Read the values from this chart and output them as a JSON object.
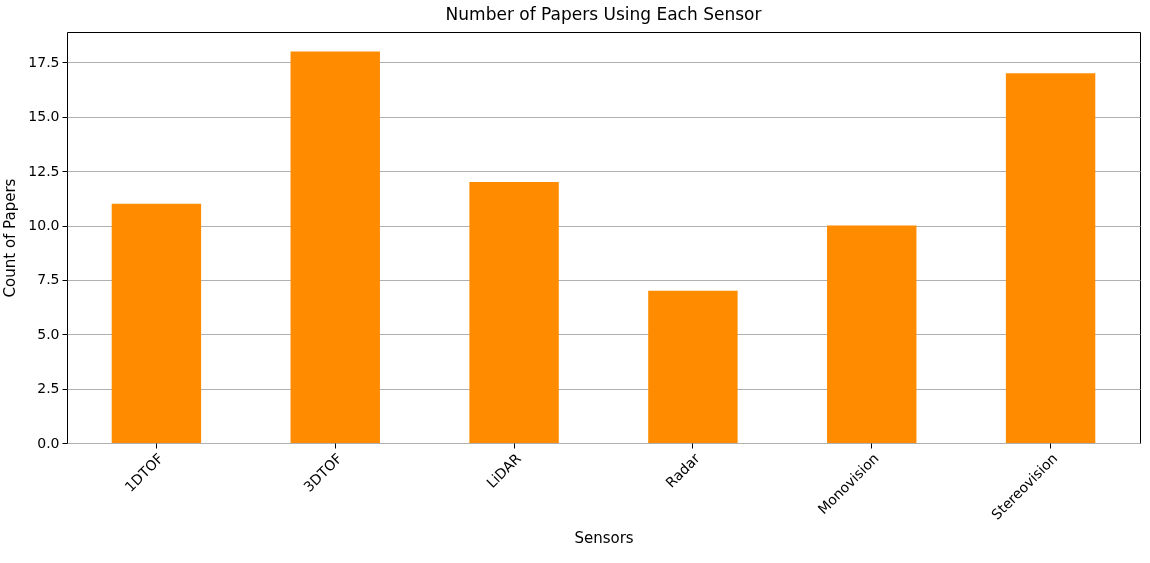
{
  "chart_data": {
    "type": "bar",
    "title": "Number of Papers Using Each Sensor",
    "xlabel": "Sensors",
    "ylabel": "Count of Papers",
    "categories": [
      "1DTOF",
      "3DTOF",
      "LiDAR",
      "Radar",
      "Monovision",
      "Stereovision"
    ],
    "values": [
      11,
      18,
      12,
      7,
      10,
      17
    ],
    "color": "#ff8c00",
    "ylim": [
      0,
      18.9
    ],
    "yticks": [
      {
        "value": 0,
        "label": "0.0"
      },
      {
        "value": 2.5,
        "label": "2.5"
      },
      {
        "value": 5,
        "label": "5.0"
      },
      {
        "value": 7.5,
        "label": "7.5"
      },
      {
        "value": 10,
        "label": "10.0"
      },
      {
        "value": 12.5,
        "label": "12.5"
      },
      {
        "value": 15,
        "label": "15.0"
      },
      {
        "value": 17.5,
        "label": "17.5"
      }
    ],
    "grid": "y"
  }
}
